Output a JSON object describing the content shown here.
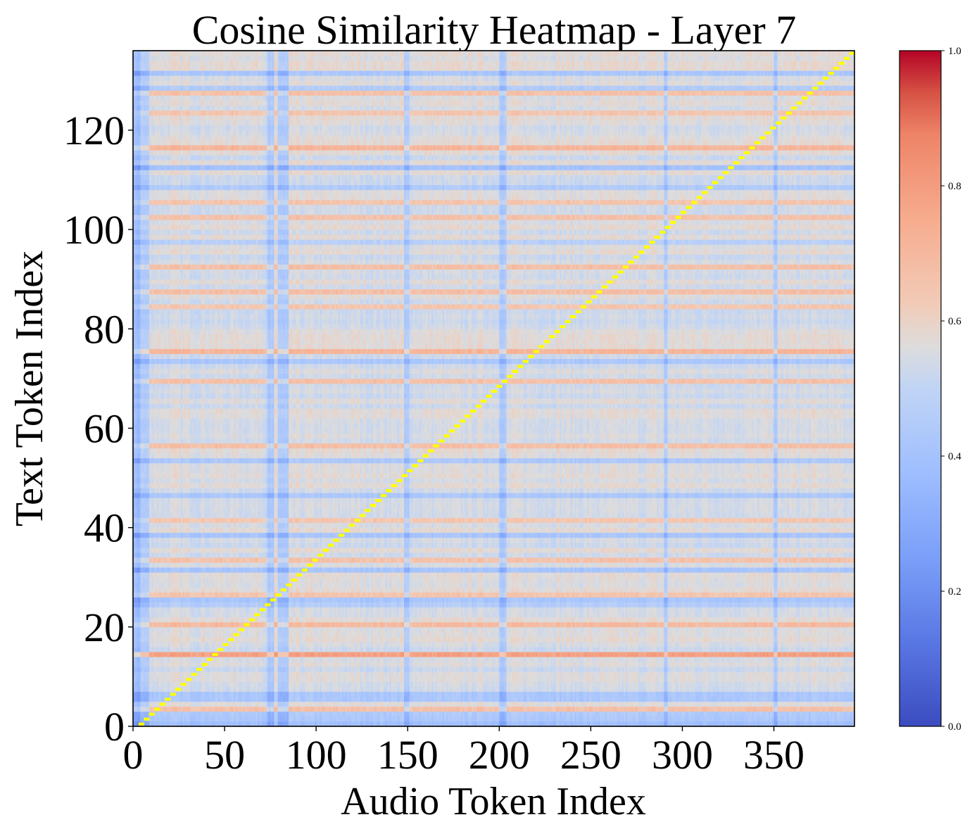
{
  "chart_data": {
    "type": "heatmap",
    "title": "Cosine Similarity Heatmap - Layer 7",
    "xlabel": "Audio Token Index",
    "ylabel": "Text Token Index",
    "x_count": 394,
    "y_count": 136,
    "xlim": [
      0,
      394
    ],
    "ylim": [
      0,
      136
    ],
    "x_ticks": [
      0,
      50,
      100,
      150,
      200,
      250,
      300,
      350
    ],
    "y_ticks": [
      0,
      20,
      40,
      60,
      80,
      100,
      120
    ],
    "colormap": "coolwarm",
    "colorbar": {
      "range": [
        0.0,
        1.0
      ],
      "ticks": [
        "0.0",
        "0.2",
        "0.4",
        "0.6",
        "0.8",
        "1.0"
      ]
    },
    "value_range_estimate": [
      0.3,
      0.85
    ],
    "baseline_value": 0.55,
    "high_rows": [
      3,
      14,
      20,
      26,
      33,
      41,
      56,
      69,
      75,
      84,
      87,
      92,
      102,
      105,
      116,
      123,
      127
    ],
    "low_rows": [
      0,
      1,
      2,
      5,
      6,
      24,
      25,
      31,
      38,
      46,
      53,
      73,
      97,
      108,
      112,
      128,
      131
    ],
    "low_columns": [
      0,
      1,
      2,
      3,
      4,
      5,
      6,
      7,
      8,
      73,
      74,
      75,
      76,
      79,
      80,
      81,
      82,
      83,
      84,
      148,
      149,
      150,
      200,
      201,
      202,
      203,
      290,
      291,
      350,
      351
    ],
    "alignment_path": {
      "description": "yellow markers along the diagonal tracing the monotonic audio-text alignment",
      "start": [
        3,
        0
      ],
      "end": [
        394,
        136
      ],
      "color": "#ffff00"
    },
    "colors": {
      "alignment": "#ffff00",
      "axis": "#000000",
      "background": "#ffffff"
    }
  }
}
